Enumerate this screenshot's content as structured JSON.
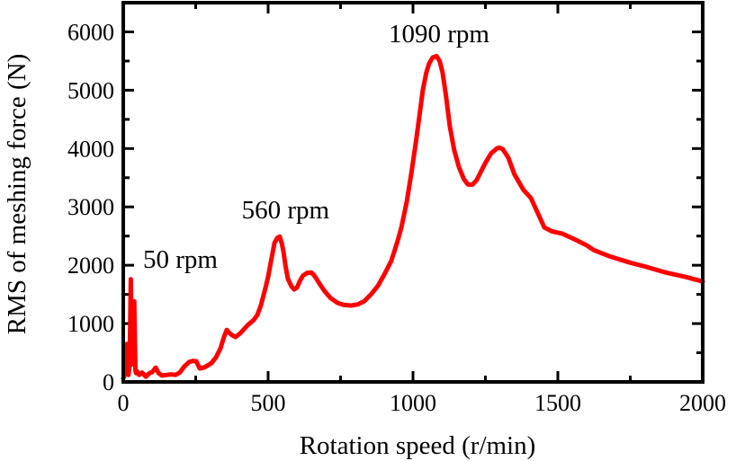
{
  "chart_data": {
    "type": "line",
    "title": "",
    "xlabel": "Rotation speed (r/min)",
    "ylabel": "RMS of meshing force (N)",
    "xlim": [
      0,
      2000
    ],
    "ylim": [
      0,
      6500
    ],
    "xticks": [
      0,
      500,
      1000,
      1500,
      2000
    ],
    "yticks": [
      0,
      1000,
      2000,
      3000,
      4000,
      5000,
      6000
    ],
    "x_minor_step": 250,
    "y_minor_step": 500,
    "grid": false,
    "legend": "none",
    "series": [
      {
        "name": "RMS of meshing force",
        "color": "#ff0000",
        "x": [
          0,
          8,
          12,
          15,
          18,
          22,
          26,
          30,
          34,
          38,
          42,
          44,
          47,
          55,
          65,
          78,
          90,
          100,
          112,
          122,
          134,
          150,
          165,
          180,
          195,
          210,
          227,
          240,
          252,
          264,
          280,
          304,
          320,
          335,
          347,
          357,
          366,
          376,
          388,
          405,
          429,
          450,
          463,
          475,
          491,
          500,
          509,
          522,
          532,
          540,
          547,
          553,
          560,
          568,
          580,
          590,
          600,
          609,
          620,
          635,
          649,
          660,
          675,
          693,
          715,
          739,
          760,
          786,
          810,
          832,
          855,
          879,
          902,
          925,
          947,
          960,
          978,
          995,
          1009,
          1022,
          1034,
          1046,
          1056,
          1068,
          1081,
          1092,
          1102,
          1114,
          1127,
          1142,
          1158,
          1175,
          1189,
          1205,
          1220,
          1236,
          1252,
          1270,
          1289,
          1298,
          1310,
          1329,
          1350,
          1380,
          1407,
          1430,
          1453,
          1480,
          1516,
          1560,
          1600,
          1624,
          1680,
          1748,
          1800,
          1873,
          1940,
          2000
        ],
        "y": [
          60,
          150,
          650,
          200,
          120,
          300,
          1760,
          300,
          900,
          1380,
          200,
          150,
          185,
          120,
          160,
          90,
          150,
          170,
          245,
          150,
          110,
          120,
          130,
          120,
          160,
          260,
          340,
          360,
          355,
          230,
          250,
          320,
          420,
          570,
          760,
          890,
          840,
          800,
          770,
          840,
          970,
          1060,
          1150,
          1310,
          1615,
          1800,
          2045,
          2385,
          2470,
          2490,
          2380,
          2230,
          1990,
          1770,
          1640,
          1585,
          1620,
          1725,
          1820,
          1870,
          1875,
          1820,
          1700,
          1570,
          1440,
          1355,
          1320,
          1310,
          1330,
          1385,
          1500,
          1645,
          1850,
          2075,
          2415,
          2650,
          3075,
          3600,
          4075,
          4550,
          5000,
          5300,
          5460,
          5560,
          5585,
          5500,
          5310,
          4900,
          4385,
          3980,
          3690,
          3480,
          3385,
          3380,
          3460,
          3620,
          3770,
          3920,
          4000,
          4015,
          3990,
          3845,
          3560,
          3300,
          3150,
          2900,
          2650,
          2580,
          2540,
          2440,
          2340,
          2260,
          2150,
          2045,
          1980,
          1875,
          1800,
          1720
        ]
      }
    ],
    "annotations": [
      {
        "text": "50 rpm",
        "x": 50,
        "y": 1960
      },
      {
        "text": "560 rpm",
        "x": 560,
        "y": 2800
      },
      {
        "text": "1090 rpm",
        "x": 1090,
        "y": 5820
      }
    ]
  }
}
